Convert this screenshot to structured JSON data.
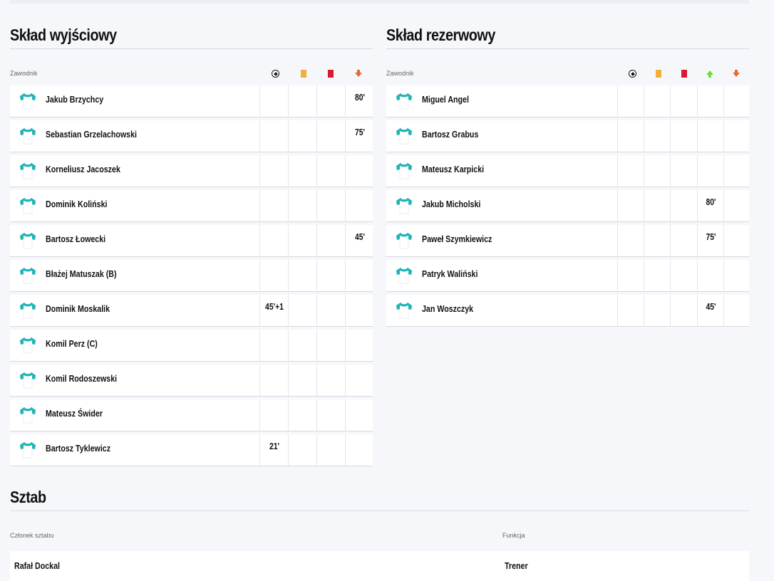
{
  "starting": {
    "title": "Skład wyjściowy",
    "column_player": "Zawodnik",
    "columns": [
      "goal-icon",
      "yellow-card-icon",
      "red-card-icon",
      "sub-off-icon"
    ],
    "players": [
      {
        "name": "Jakub Brzychcy",
        "goal": "",
        "yellow": "",
        "red": "",
        "off": "80'"
      },
      {
        "name": "Sebastian Grzelachowski",
        "goal": "",
        "yellow": "",
        "red": "",
        "off": "75'"
      },
      {
        "name": "Korneliusz Jacoszek",
        "goal": "",
        "yellow": "",
        "red": "",
        "off": ""
      },
      {
        "name": "Dominik Koliński",
        "goal": "",
        "yellow": "",
        "red": "",
        "off": ""
      },
      {
        "name": "Bartosz Łowecki",
        "goal": "",
        "yellow": "",
        "red": "",
        "off": "45'"
      },
      {
        "name": "Błażej Matuszak (B)",
        "goal": "",
        "yellow": "",
        "red": "",
        "off": ""
      },
      {
        "name": "Dominik Moskalik",
        "goal": "45'+1",
        "yellow": "",
        "red": "",
        "off": ""
      },
      {
        "name": "Komil Perz (C)",
        "goal": "",
        "yellow": "",
        "red": "",
        "off": ""
      },
      {
        "name": "Komil Rodoszewski",
        "goal": "",
        "yellow": "",
        "red": "",
        "off": ""
      },
      {
        "name": "Mateusz Świder",
        "goal": "",
        "yellow": "",
        "red": "",
        "off": ""
      },
      {
        "name": "Bartosz Tyklewicz",
        "goal": "21'",
        "yellow": "",
        "red": "",
        "off": ""
      }
    ]
  },
  "reserve": {
    "title": "Skład rezerwowy",
    "column_player": "Zawodnik",
    "columns": [
      "goal-icon",
      "yellow-card-icon",
      "red-card-icon",
      "sub-on-icon",
      "sub-off-icon"
    ],
    "players": [
      {
        "name": "Miguel Angel",
        "goal": "",
        "yellow": "",
        "red": "",
        "on": "",
        "off": ""
      },
      {
        "name": "Bartosz Grabus",
        "goal": "",
        "yellow": "",
        "red": "",
        "on": "",
        "off": ""
      },
      {
        "name": "Mateusz Karpicki",
        "goal": "",
        "yellow": "",
        "red": "",
        "on": "",
        "off": ""
      },
      {
        "name": "Jakub Micholski",
        "goal": "",
        "yellow": "",
        "red": "",
        "on": "80'",
        "off": ""
      },
      {
        "name": "Paweł Szymkiewicz",
        "goal": "",
        "yellow": "",
        "red": "",
        "on": "75'",
        "off": ""
      },
      {
        "name": "Patryk Waliński",
        "goal": "",
        "yellow": "",
        "red": "",
        "on": "",
        "off": ""
      },
      {
        "name": "Jan Woszczyk",
        "goal": "",
        "yellow": "",
        "red": "",
        "on": "45'",
        "off": ""
      }
    ]
  },
  "staff": {
    "title": "Sztab",
    "column_member": "Członek sztabu",
    "column_role": "Funkcja",
    "members": [
      {
        "name": "Rafał Dockal",
        "role": "Trener"
      }
    ]
  },
  "colors": {
    "shirt_accent": "#1fb5b8",
    "yellow_card": "#f2b03a",
    "red_card": "#d9192f",
    "sub_off": "#f06424",
    "sub_on": "#6fdc3c"
  }
}
